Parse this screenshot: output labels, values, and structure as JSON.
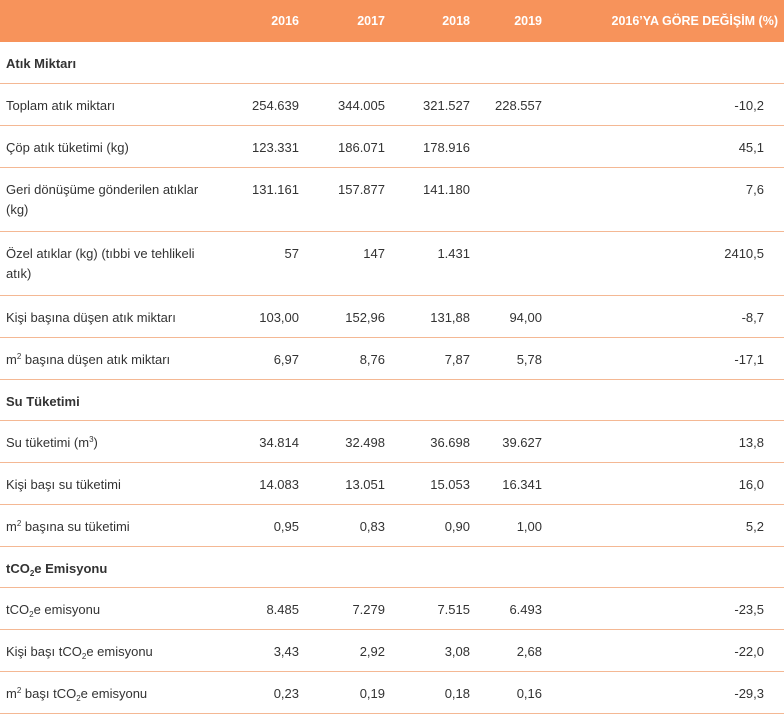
{
  "header": {
    "label": "",
    "y2016": "2016",
    "y2017": "2017",
    "y2018": "2018",
    "y2019": "2019",
    "change": "2016’YA GÖRE DEĞİŞİM (%)"
  },
  "sections": {
    "waste": {
      "title": "Atık Miktarı",
      "rows": [
        {
          "label": "Toplam atık miktarı",
          "v2016": "254.639",
          "v2017": "344.005",
          "v2018": "321.527",
          "v2019": "228.557",
          "change": "-10,2"
        },
        {
          "label": "Çöp atık tüketimi (kg)",
          "v2016": "123.331",
          "v2017": "186.071",
          "v2018": "178.916",
          "v2019": "",
          "change": "45,1"
        },
        {
          "label": "Geri dönüşüme gönderilen atıklar (kg)",
          "v2016": "131.161",
          "v2017": "157.877",
          "v2018": "141.180",
          "v2019": "",
          "change": "7,6"
        },
        {
          "label": "Özel atıklar (kg) (tıbbi ve tehlikeli atık)",
          "v2016": "57",
          "v2017": "147",
          "v2018": "1.431",
          "v2019": "",
          "change": "2410,5"
        },
        {
          "label": "Kişi başına düşen atık miktarı",
          "v2016": "103,00",
          "v2017": "152,96",
          "v2018": "131,88",
          "v2019": "94,00",
          "change": "-8,7"
        },
        {
          "label_pre": "m",
          "label_sup": "2",
          "label_post": " başına düşen atık miktarı",
          "v2016": "6,97",
          "v2017": "8,76",
          "v2018": "7,87",
          "v2019": "5,78",
          "change": "-17,1"
        }
      ]
    },
    "water": {
      "title": "Su Tüketimi",
      "rows": [
        {
          "label_pre": "Su tüketimi (m",
          "label_sup": "3",
          "label_post": ")",
          "v2016": "34.814",
          "v2017": "32.498",
          "v2018": "36.698",
          "v2019": "39.627",
          "change": "13,8"
        },
        {
          "label": "Kişi başı su tüketimi",
          "v2016": "14.083",
          "v2017": "13.051",
          "v2018": "15.053",
          "v2019": "16.341",
          "change": "16,0"
        },
        {
          "label_pre": "m",
          "label_sup": "2",
          "label_post": " başına su tüketimi",
          "v2016": "0,95",
          "v2017": "0,83",
          "v2018": "0,90",
          "v2019": "1,00",
          "change": "5,2"
        }
      ]
    },
    "emission": {
      "title_pre": "tCO",
      "title_sub": "2",
      "title_post": "e Emisyonu",
      "rows": [
        {
          "label_pre": "tCO",
          "label_sub": "2",
          "label_post": "e emisyonu",
          "v2016": "8.485",
          "v2017": "7.279",
          "v2018": "7.515",
          "v2019": "6.493",
          "change": "-23,5"
        },
        {
          "label_pre": "Kişi başı tCO",
          "label_sub": "2",
          "label_post": "e emisyonu",
          "v2016": "3,43",
          "v2017": "2,92",
          "v2018": "3,08",
          "v2019": "2,68",
          "change": "-22,0"
        },
        {
          "label_pre": "m",
          "label_sup": "2",
          "label_mid": " başı tCO",
          "label_sub": "2",
          "label_post": "e emisyonu",
          "v2016": "0,23",
          "v2017": "0,19",
          "v2018": "0,18",
          "v2019": "0,16",
          "change": "-29,3"
        }
      ]
    }
  },
  "colors": {
    "header_bg": "#f7935b",
    "row_border": "#f4b894",
    "text": "#333333"
  }
}
